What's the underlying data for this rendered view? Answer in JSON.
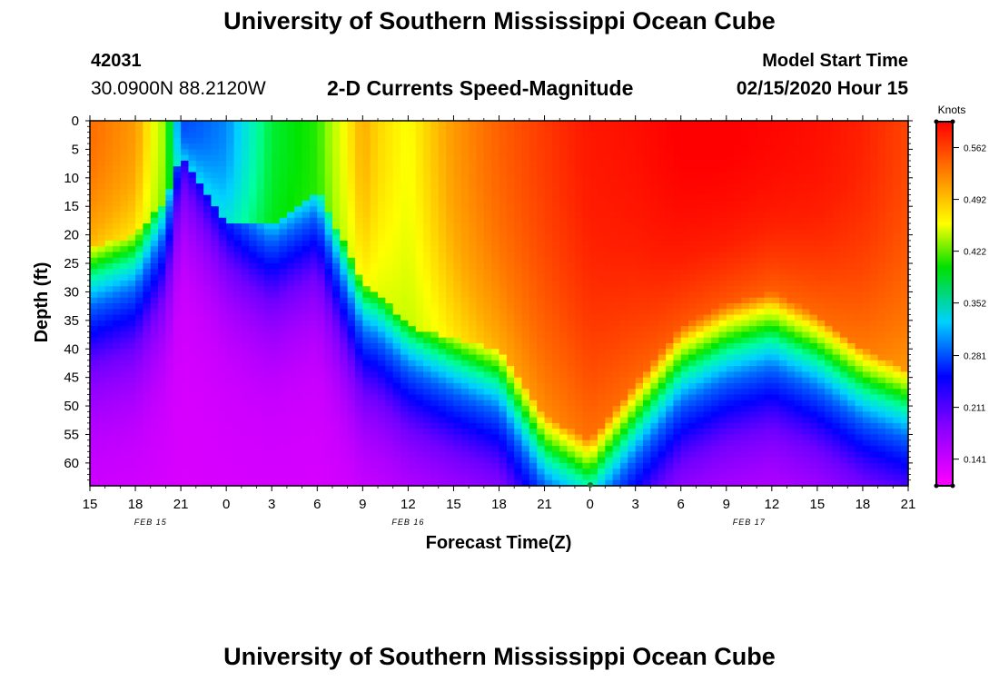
{
  "header": {
    "title": "University of Southern Mississippi Ocean Cube",
    "station_id": "42031",
    "station_coords": "30.0900N 88.2120W",
    "subtitle": "2-D Currents Speed-Magnitude",
    "model_label": "Model Start Time",
    "model_time": "02/15/2020 Hour 15"
  },
  "footer": {
    "title": "University of Southern Mississippi Ocean Cube"
  },
  "chart_data": {
    "type": "heatmap",
    "xlabel": "Forecast Time(Z)",
    "ylabel": "Depth (ft)",
    "colorbar_label": "Knots",
    "colorbar_ticks": [
      "0.562",
      "0.492",
      "0.422",
      "0.352",
      "0.281",
      "0.211",
      "0.141"
    ],
    "colorbar_tick_values": [
      0.562,
      0.492,
      0.422,
      0.352,
      0.281,
      0.211,
      0.141
    ],
    "colorbar_range": [
      0.105,
      0.597
    ],
    "x_tick_labels": [
      "15",
      "18",
      "21",
      "0",
      "3",
      "6",
      "9",
      "12",
      "15",
      "18",
      "21",
      "0",
      "3",
      "6",
      "9",
      "12",
      "15",
      "18",
      "21"
    ],
    "x_range_hours": [
      0,
      54
    ],
    "date_labels": [
      {
        "label": "FEB 15",
        "hour": 4
      },
      {
        "label": "FEB 16",
        "hour": 21
      },
      {
        "label": "FEB 17",
        "hour": 43.5
      }
    ],
    "y_ticks": [
      0,
      5,
      10,
      15,
      20,
      25,
      30,
      35,
      40,
      45,
      50,
      55,
      60
    ],
    "y_tick_labels": [
      "0",
      "5",
      "10",
      "15",
      "20",
      "25",
      "30",
      "35",
      "40",
      "45",
      "50",
      "55",
      "60"
    ],
    "y_range": [
      0,
      64
    ],
    "hours": [
      0,
      3,
      5,
      6,
      9,
      12,
      15,
      18,
      19,
      21,
      24,
      27,
      30,
      33,
      36,
      39,
      42,
      45,
      48,
      51,
      54
    ],
    "surface_speed": [
      0.5,
      0.47,
      0.38,
      0.24,
      0.26,
      0.34,
      0.36,
      0.46,
      0.44,
      0.42,
      0.47,
      0.51,
      0.54,
      0.57,
      0.58,
      0.6,
      0.6,
      0.59,
      0.58,
      0.56,
      0.53
    ],
    "mix_depth_ft": [
      22,
      20,
      14,
      6,
      18,
      18,
      12,
      28,
      30,
      36,
      38,
      40,
      52,
      56,
      46,
      36,
      32,
      30,
      34,
      40,
      44
    ]
  }
}
